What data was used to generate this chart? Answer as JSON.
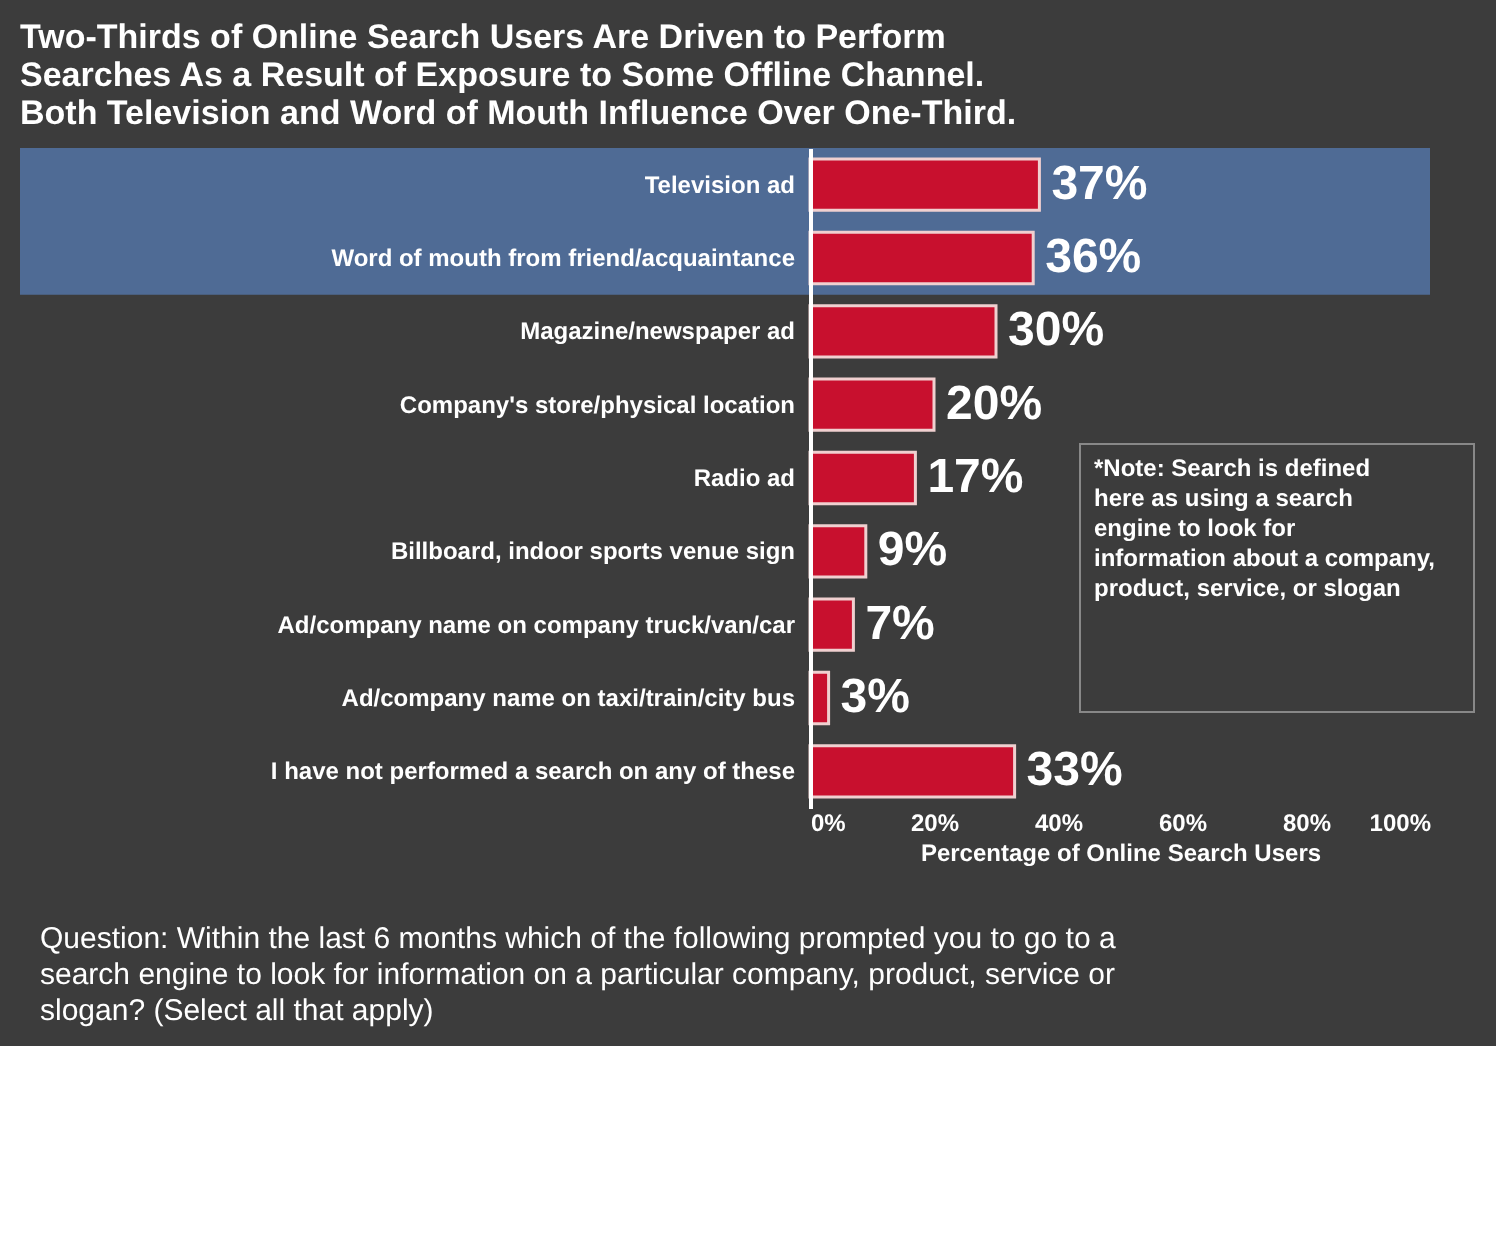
{
  "chart_data": {
    "type": "bar",
    "orientation": "horizontal",
    "title": [
      "Two-Thirds of Online Search Users Are Driven to Perform",
      "Searches As a Result of Exposure to Some Offline Channel.",
      "Both Television and Word of Mouth Influence Over One-Third."
    ],
    "categories": [
      "Television ad",
      "Word of mouth from friend/acquaintance",
      "Magazine/newspaper ad",
      "Company's store/physical location",
      "Radio ad",
      "Billboard, indoor sports venue sign",
      "Ad/company name on company truck/van/car",
      "Ad/company name on taxi/train/city bus",
      "I have not performed a search on any of these"
    ],
    "values": [
      37,
      36,
      30,
      20,
      17,
      9,
      7,
      3,
      33
    ],
    "value_labels": [
      "37%",
      "36%",
      "30%",
      "20%",
      "17%",
      "9%",
      "7%",
      "3%",
      "33%"
    ],
    "color": "#c8102e",
    "xlim": [
      0,
      100
    ],
    "xticks": [
      {
        "value": 0,
        "label": "0%"
      },
      {
        "value": 20,
        "label": "20%"
      },
      {
        "value": 40,
        "label": "40%"
      },
      {
        "value": 60,
        "label": "60%"
      },
      {
        "value": 80,
        "label": "80%"
      },
      {
        "value": 100,
        "label": "100%"
      }
    ],
    "xlabel": "Percentage of Online Search Users",
    "bands": [
      {
        "axis": "y",
        "from": "Television ad",
        "to": "Word of mouth from friend/acquaintance",
        "color": "#4f6b95"
      }
    ],
    "annotations": [
      "*Note: Search is defined here as using a search engine to look for information about a company, product, service, or slogan",
      "Question: Within the last 6 months which of the following prompted you to go to a search engine to look for information on a particular company, product, service or slogan? (Select all that apply)"
    ],
    "grid": false
  }
}
